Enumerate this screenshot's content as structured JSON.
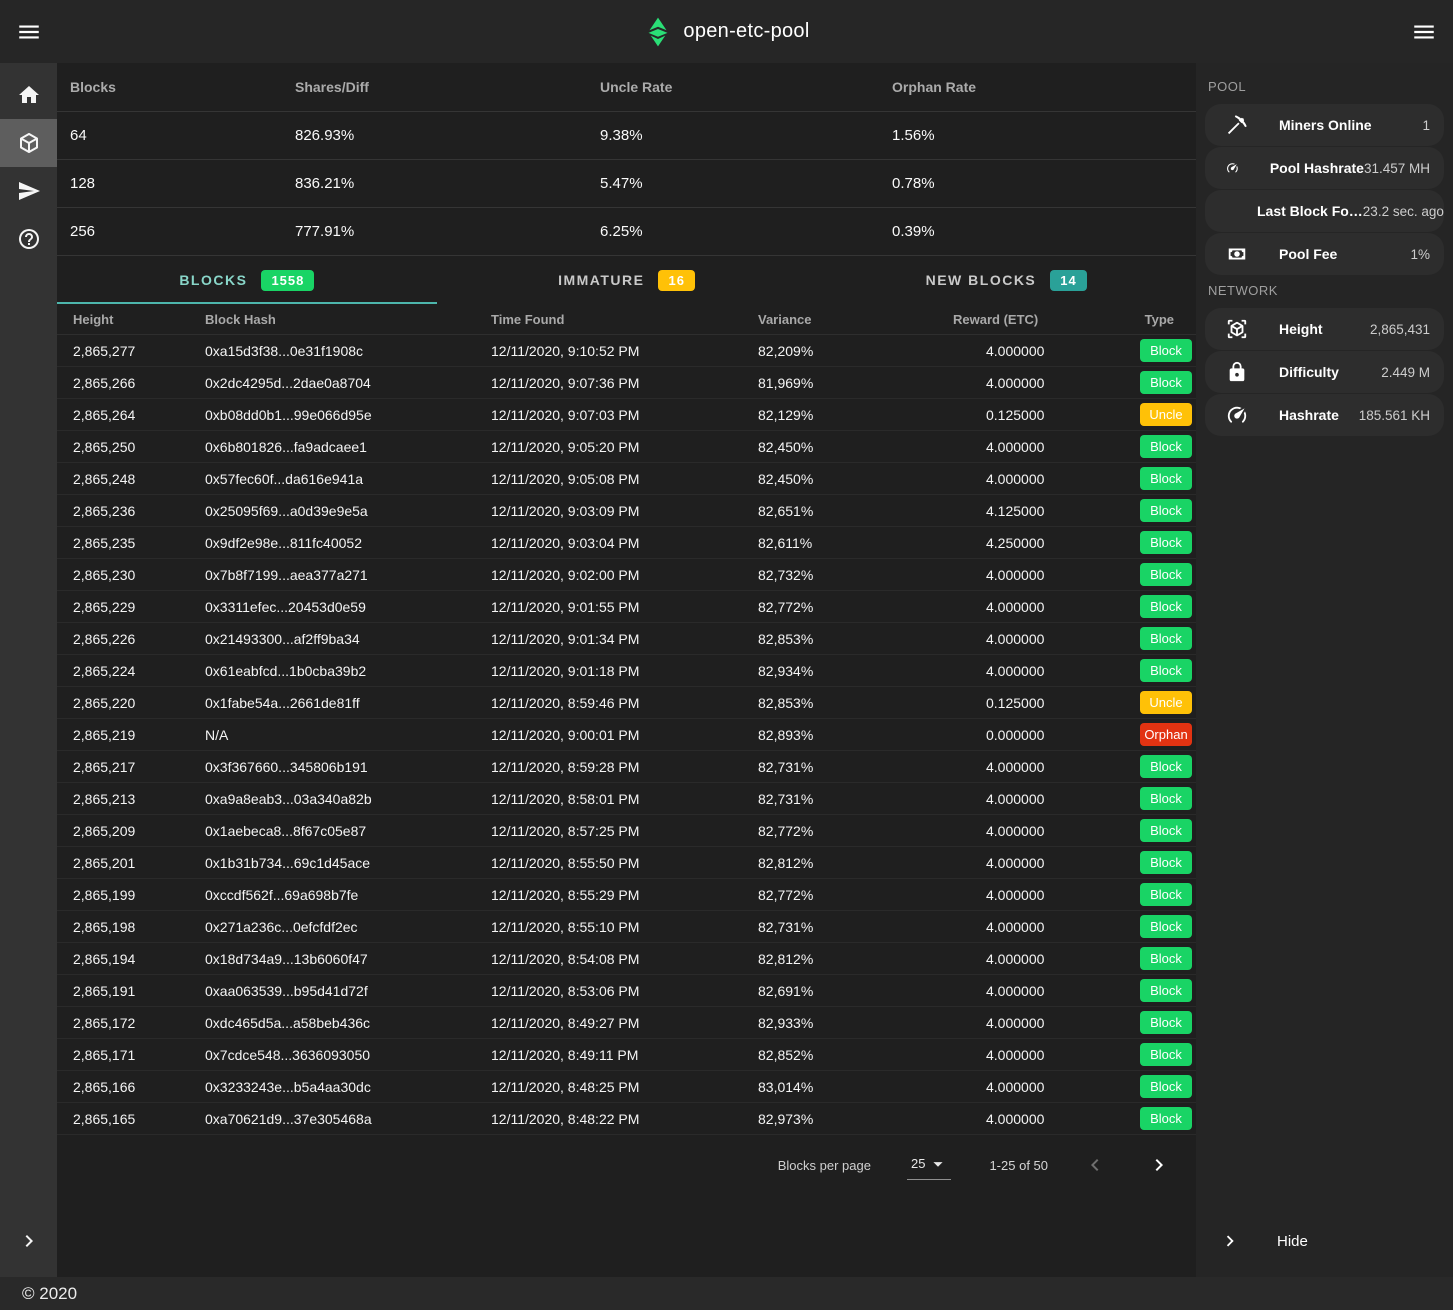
{
  "colors": {
    "green": "#19d465",
    "amber": "#ffc107",
    "red": "#e23312",
    "teal_badge": "#2aa198",
    "accent": "#4db6ac",
    "logo_green": "#2ade76"
  },
  "topbar": {
    "title": "open-etc-pool"
  },
  "left_sidebar": {
    "items": [
      {
        "name": "home",
        "icon": "home-icon",
        "active": false
      },
      {
        "name": "blocks",
        "icon": "cube-icon",
        "active": true
      },
      {
        "name": "payments",
        "icon": "send-icon",
        "active": false
      },
      {
        "name": "help",
        "icon": "help-icon",
        "active": false
      }
    ]
  },
  "stats_table": {
    "headers": [
      "Blocks",
      "Shares/Diff",
      "Uncle Rate",
      "Orphan Rate"
    ],
    "rows": [
      [
        "64",
        "826.93%",
        "9.38%",
        "1.56%"
      ],
      [
        "128",
        "836.21%",
        "5.47%",
        "0.78%"
      ],
      [
        "256",
        "777.91%",
        "6.25%",
        "0.39%"
      ]
    ]
  },
  "tabs": [
    {
      "label": "BLOCKS",
      "count": "1558",
      "badge_color": "#19d465",
      "active": true
    },
    {
      "label": "IMMATURE",
      "count": "16",
      "badge_color": "#ffc107",
      "active": false
    },
    {
      "label": "NEW BLOCKS",
      "count": "14",
      "badge_color": "#2aa198",
      "active": false
    }
  ],
  "blocks_table": {
    "headers": [
      "Height",
      "Block Hash",
      "Time Found",
      "Variance",
      "Reward (ETC)",
      "Type"
    ],
    "type_colors": {
      "Block": "#19d465",
      "Uncle": "#ffc107",
      "Orphan": "#e23312"
    },
    "rows": [
      {
        "height": "2,865,277",
        "hash": "0xa15d3f38...0e31f1908c",
        "time": "12/11/2020, 9:10:52 PM",
        "variance": "82,209%",
        "reward": "4.000000",
        "type": "Block"
      },
      {
        "height": "2,865,266",
        "hash": "0x2dc4295d...2dae0a8704",
        "time": "12/11/2020, 9:07:36 PM",
        "variance": "81,969%",
        "reward": "4.000000",
        "type": "Block"
      },
      {
        "height": "2,865,264",
        "hash": "0xb08dd0b1...99e066d95e",
        "time": "12/11/2020, 9:07:03 PM",
        "variance": "82,129%",
        "reward": "0.125000",
        "type": "Uncle"
      },
      {
        "height": "2,865,250",
        "hash": "0x6b801826...fa9adcaee1",
        "time": "12/11/2020, 9:05:20 PM",
        "variance": "82,450%",
        "reward": "4.000000",
        "type": "Block"
      },
      {
        "height": "2,865,248",
        "hash": "0x57fec60f...da616e941a",
        "time": "12/11/2020, 9:05:08 PM",
        "variance": "82,450%",
        "reward": "4.000000",
        "type": "Block"
      },
      {
        "height": "2,865,236",
        "hash": "0x25095f69...a0d39e9e5a",
        "time": "12/11/2020, 9:03:09 PM",
        "variance": "82,651%",
        "reward": "4.125000",
        "type": "Block"
      },
      {
        "height": "2,865,235",
        "hash": "0x9df2e98e...811fc40052",
        "time": "12/11/2020, 9:03:04 PM",
        "variance": "82,611%",
        "reward": "4.250000",
        "type": "Block"
      },
      {
        "height": "2,865,230",
        "hash": "0x7b8f7199...aea377a271",
        "time": "12/11/2020, 9:02:00 PM",
        "variance": "82,732%",
        "reward": "4.000000",
        "type": "Block"
      },
      {
        "height": "2,865,229",
        "hash": "0x3311efec...20453d0e59",
        "time": "12/11/2020, 9:01:55 PM",
        "variance": "82,772%",
        "reward": "4.000000",
        "type": "Block"
      },
      {
        "height": "2,865,226",
        "hash": "0x21493300...af2ff9ba34",
        "time": "12/11/2020, 9:01:34 PM",
        "variance": "82,853%",
        "reward": "4.000000",
        "type": "Block"
      },
      {
        "height": "2,865,224",
        "hash": "0x61eabfcd...1b0cba39b2",
        "time": "12/11/2020, 9:01:18 PM",
        "variance": "82,934%",
        "reward": "4.000000",
        "type": "Block"
      },
      {
        "height": "2,865,220",
        "hash": "0x1fabe54a...2661de81ff",
        "time": "12/11/2020, 8:59:46 PM",
        "variance": "82,853%",
        "reward": "0.125000",
        "type": "Uncle"
      },
      {
        "height": "2,865,219",
        "hash": "N/A",
        "time": "12/11/2020, 9:00:01 PM",
        "variance": "82,893%",
        "reward": "0.000000",
        "type": "Orphan"
      },
      {
        "height": "2,865,217",
        "hash": "0x3f367660...345806b191",
        "time": "12/11/2020, 8:59:28 PM",
        "variance": "82,731%",
        "reward": "4.000000",
        "type": "Block"
      },
      {
        "height": "2,865,213",
        "hash": "0xa9a8eab3...03a340a82b",
        "time": "12/11/2020, 8:58:01 PM",
        "variance": "82,731%",
        "reward": "4.000000",
        "type": "Block"
      },
      {
        "height": "2,865,209",
        "hash": "0x1aebeca8...8f67c05e87",
        "time": "12/11/2020, 8:57:25 PM",
        "variance": "82,772%",
        "reward": "4.000000",
        "type": "Block"
      },
      {
        "height": "2,865,201",
        "hash": "0x1b31b734...69c1d45ace",
        "time": "12/11/2020, 8:55:50 PM",
        "variance": "82,812%",
        "reward": "4.000000",
        "type": "Block"
      },
      {
        "height": "2,865,199",
        "hash": "0xccdf562f...69a698b7fe",
        "time": "12/11/2020, 8:55:29 PM",
        "variance": "82,772%",
        "reward": "4.000000",
        "type": "Block"
      },
      {
        "height": "2,865,198",
        "hash": "0x271a236c...0efcfdf2ec",
        "time": "12/11/2020, 8:55:10 PM",
        "variance": "82,731%",
        "reward": "4.000000",
        "type": "Block"
      },
      {
        "height": "2,865,194",
        "hash": "0x18d734a9...13b6060f47",
        "time": "12/11/2020, 8:54:08 PM",
        "variance": "82,812%",
        "reward": "4.000000",
        "type": "Block"
      },
      {
        "height": "2,865,191",
        "hash": "0xaa063539...b95d41d72f",
        "time": "12/11/2020, 8:53:06 PM",
        "variance": "82,691%",
        "reward": "4.000000",
        "type": "Block"
      },
      {
        "height": "2,865,172",
        "hash": "0xdc465d5a...a58beb436c",
        "time": "12/11/2020, 8:49:27 PM",
        "variance": "82,933%",
        "reward": "4.000000",
        "type": "Block"
      },
      {
        "height": "2,865,171",
        "hash": "0x7cdce548...3636093050",
        "time": "12/11/2020, 8:49:11 PM",
        "variance": "82,852%",
        "reward": "4.000000",
        "type": "Block"
      },
      {
        "height": "2,865,166",
        "hash": "0x3233243e...b5a4aa30dc",
        "time": "12/11/2020, 8:48:25 PM",
        "variance": "83,014%",
        "reward": "4.000000",
        "type": "Block"
      },
      {
        "height": "2,865,165",
        "hash": "0xa70621d9...37e305468a",
        "time": "12/11/2020, 8:48:22 PM",
        "variance": "82,973%",
        "reward": "4.000000",
        "type": "Block"
      }
    ]
  },
  "pagination": {
    "label": "Blocks per page",
    "per_page": "25",
    "range": "1-25 of 50",
    "prev_enabled": false,
    "next_enabled": true
  },
  "right_sidebar": {
    "sections": [
      {
        "title": "POOL",
        "items": [
          {
            "icon": "pickaxe-icon",
            "label": "Miners Online",
            "value": "1"
          },
          {
            "icon": "gauge-icon",
            "label": "Pool Hashrate",
            "value": "31.457 MH"
          },
          {
            "icon": "clock-icon",
            "label": "Last Block Fo…",
            "value": "23.2 sec. ago"
          },
          {
            "icon": "cash-icon",
            "label": "Pool Fee",
            "value": "1%"
          }
        ]
      },
      {
        "title": "NETWORK",
        "items": [
          {
            "icon": "cube-scan-icon",
            "label": "Height",
            "value": "2,865,431"
          },
          {
            "icon": "lock-icon",
            "label": "Difficulty",
            "value": "2.449 M"
          },
          {
            "icon": "gauge-icon",
            "label": "Hashrate",
            "value": "185.561 KH"
          }
        ]
      }
    ],
    "hide": {
      "label": "Hide"
    }
  },
  "footer": {
    "text": "© 2020"
  }
}
